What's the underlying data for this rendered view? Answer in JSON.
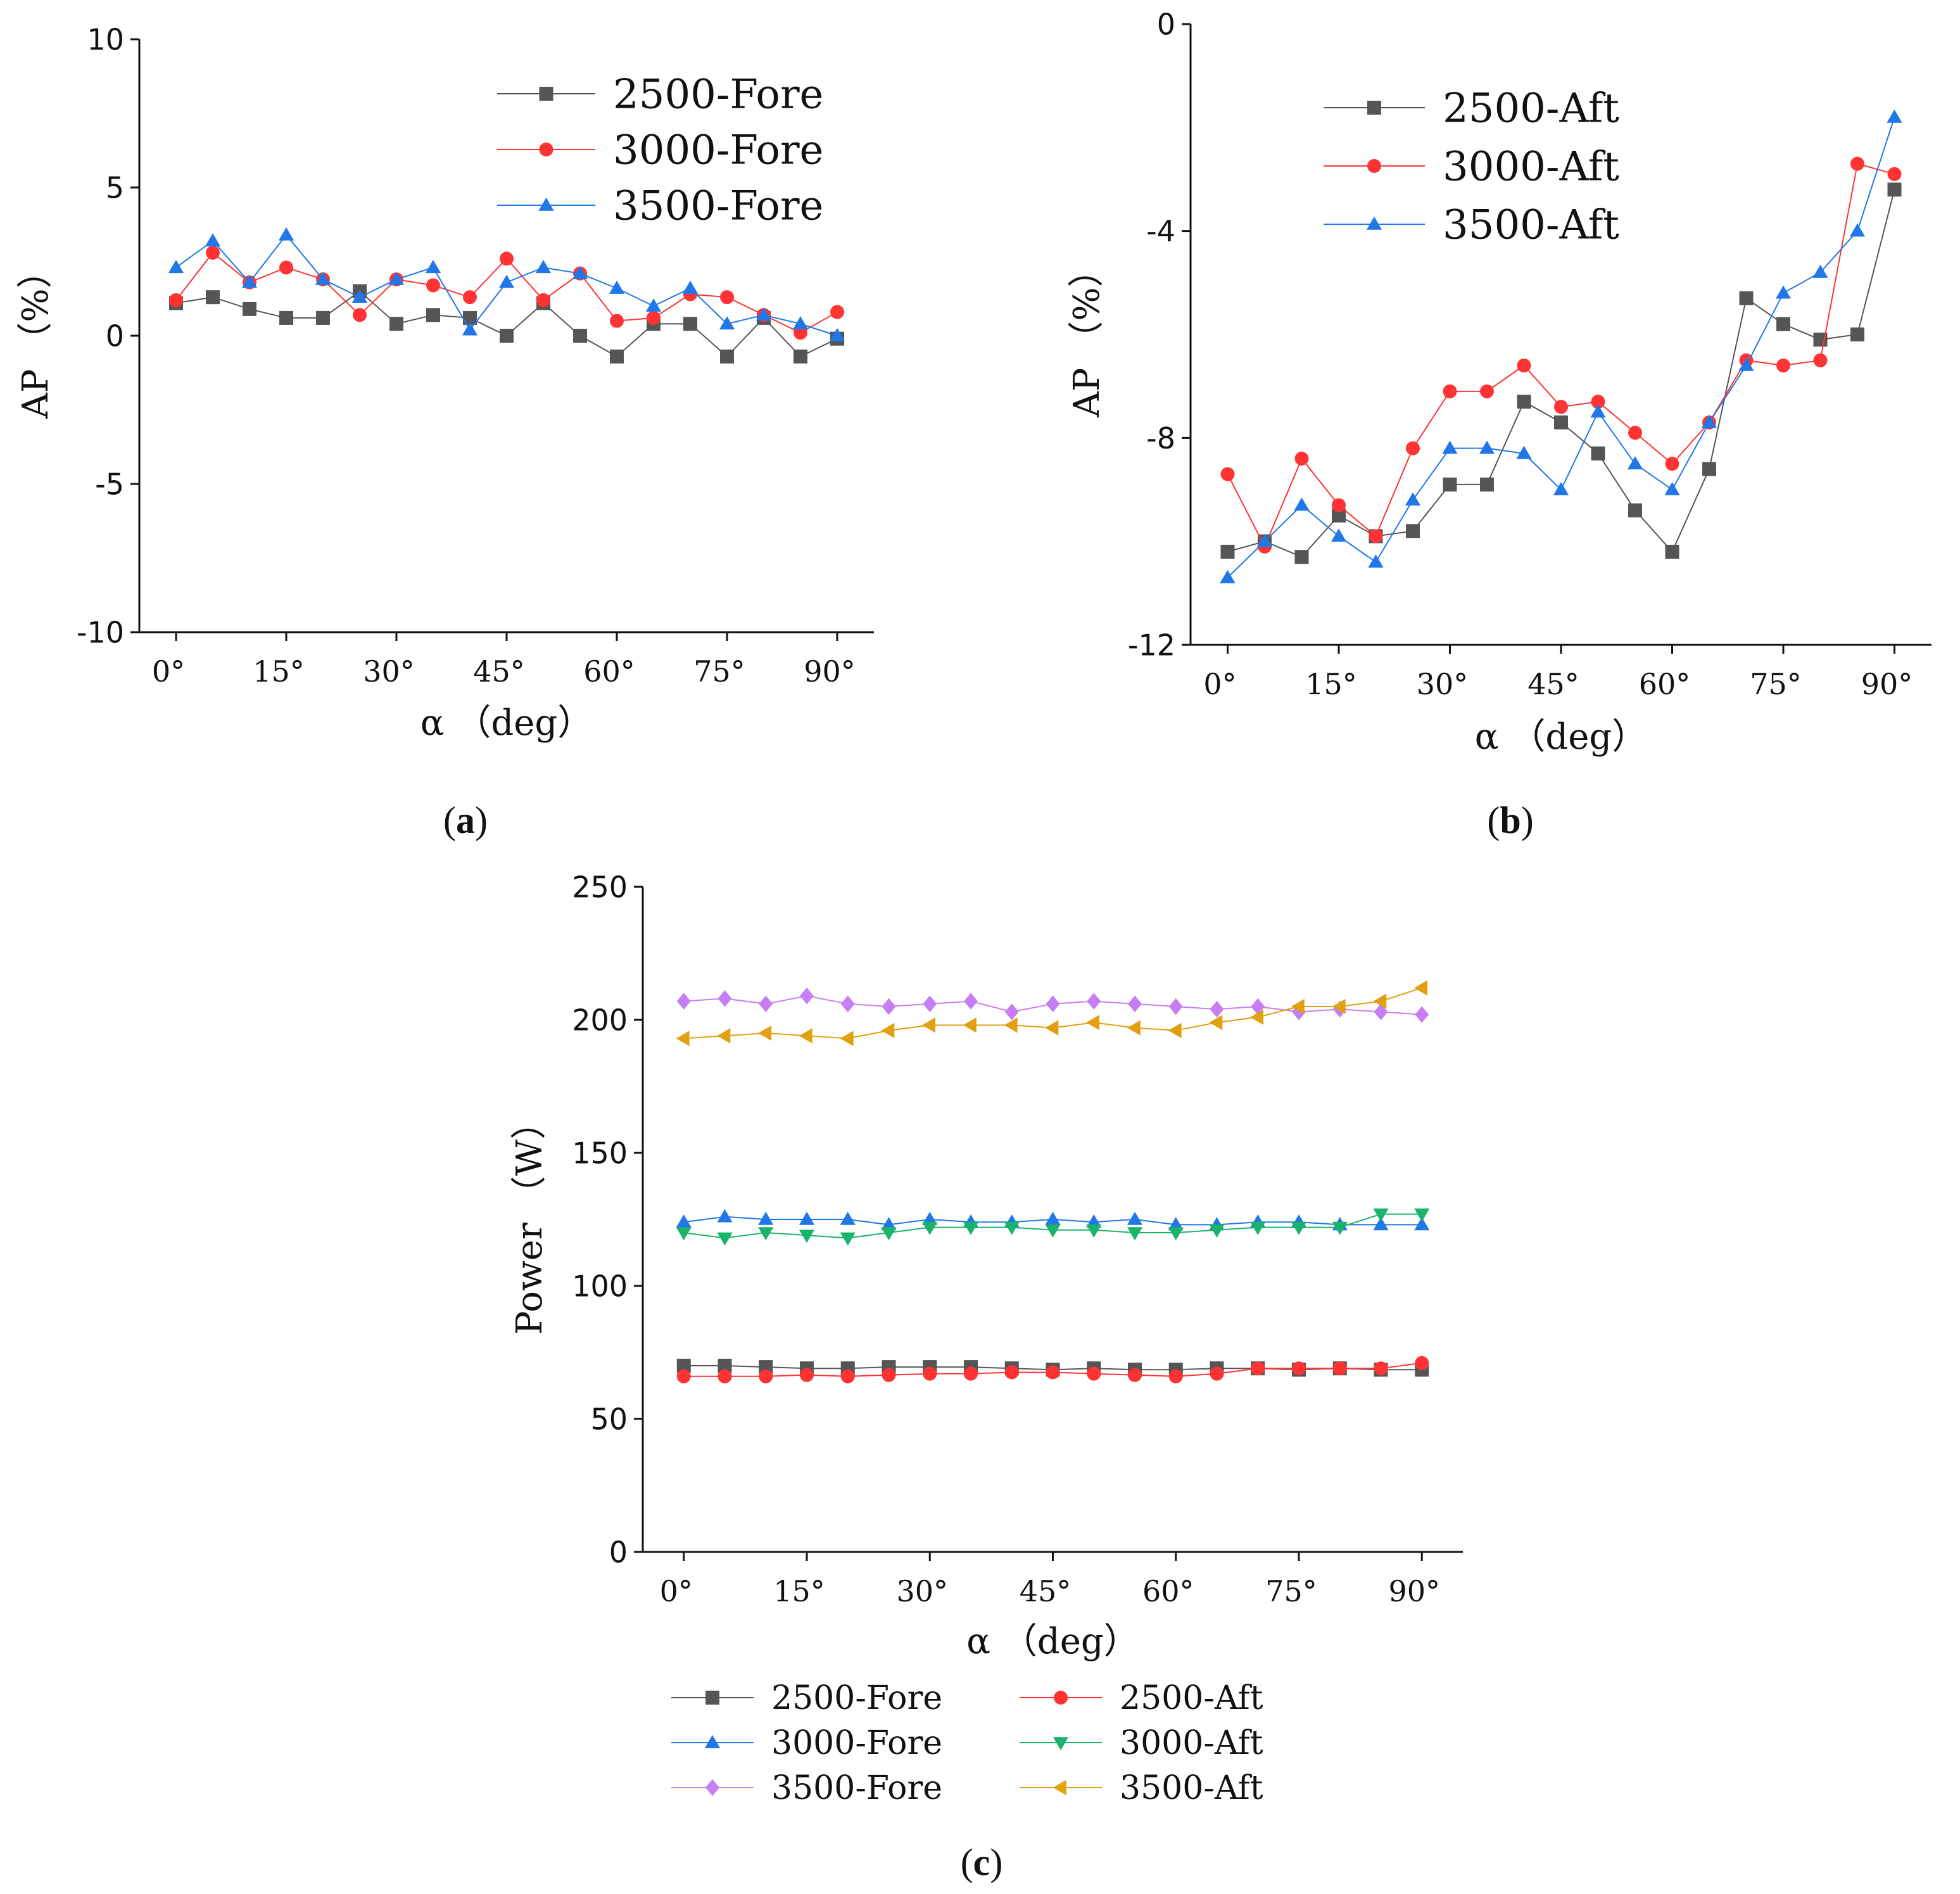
{
  "chart_data": [
    {
      "id": "a",
      "type": "line",
      "caption": "a",
      "xlabel": "α （deg）",
      "ylabel": "AP （%）",
      "xlim": [
        -5,
        95
      ],
      "ylim": [
        -10,
        10
      ],
      "xticks": [
        0,
        15,
        30,
        45,
        60,
        75,
        90
      ],
      "xtick_labels": [
        "0°",
        "15°",
        "30°",
        "45°",
        "60°",
        "75°",
        "90°"
      ],
      "yticks": [
        -10,
        -5,
        0,
        5,
        10
      ],
      "ytick_labels": [
        "-10",
        "-5",
        "0",
        "5",
        "10"
      ],
      "x": [
        0,
        5,
        10,
        15,
        20,
        25,
        30,
        35,
        40,
        45,
        50,
        55,
        60,
        65,
        70,
        75,
        80,
        85,
        90
      ],
      "legend_position": "top-right",
      "series": [
        {
          "name": "2500-Fore",
          "color": "#555555",
          "marker": "square",
          "values": [
            1.1,
            1.3,
            0.9,
            0.6,
            0.6,
            1.5,
            0.4,
            0.7,
            0.6,
            0.0,
            1.1,
            0.0,
            -0.7,
            0.4,
            0.4,
            -0.7,
            0.6,
            -0.7,
            -0.1
          ]
        },
        {
          "name": "3000-Fore",
          "color": "#ff3333",
          "marker": "circle",
          "values": [
            1.2,
            2.8,
            1.8,
            2.3,
            1.9,
            0.7,
            1.9,
            1.7,
            1.3,
            2.6,
            1.2,
            2.1,
            0.5,
            0.6,
            1.4,
            1.3,
            0.7,
            0.1,
            0.8
          ]
        },
        {
          "name": "3500-Fore",
          "color": "#1f77e8",
          "marker": "triangle-up",
          "values": [
            2.3,
            3.2,
            1.8,
            3.4,
            1.9,
            1.3,
            1.9,
            2.3,
            0.2,
            1.8,
            2.3,
            2.1,
            1.6,
            1.0,
            1.6,
            0.4,
            0.7,
            0.4,
            0.0
          ]
        }
      ]
    },
    {
      "id": "b",
      "type": "line",
      "caption": "b",
      "xlabel": "α （deg）",
      "ylabel": "AP （%）",
      "xlim": [
        -5,
        95
      ],
      "ylim": [
        -12,
        0
      ],
      "xticks": [
        0,
        15,
        30,
        45,
        60,
        75,
        90
      ],
      "xtick_labels": [
        "0°",
        "15°",
        "30°",
        "45°",
        "60°",
        "75°",
        "90°"
      ],
      "yticks": [
        -12,
        -8,
        -4,
        0
      ],
      "ytick_labels": [
        "-12",
        "-8",
        "-4",
        "0"
      ],
      "x": [
        0,
        5,
        10,
        15,
        20,
        25,
        30,
        35,
        40,
        45,
        50,
        55,
        60,
        65,
        70,
        75,
        80,
        85,
        90
      ],
      "legend_position": "top-left",
      "series": [
        {
          "name": "2500-Aft",
          "color": "#555555",
          "marker": "square",
          "values": [
            -10.2,
            -10.0,
            -10.3,
            -9.5,
            -9.9,
            -9.8,
            -8.9,
            -8.9,
            -7.3,
            -7.7,
            -8.3,
            -9.4,
            -10.2,
            -8.6,
            -5.3,
            -5.8,
            -6.1,
            -6.0,
            -3.2
          ]
        },
        {
          "name": "3000-Aft",
          "color": "#ff3333",
          "marker": "circle",
          "values": [
            -8.7,
            -10.1,
            -8.4,
            -9.3,
            -9.9,
            -8.2,
            -7.1,
            -7.1,
            -6.6,
            -7.4,
            -7.3,
            -7.9,
            -8.5,
            -7.7,
            -6.5,
            -6.6,
            -6.5,
            -2.7,
            -2.9
          ]
        },
        {
          "name": "3500-Aft",
          "color": "#1f77e8",
          "marker": "triangle-up",
          "values": [
            -10.7,
            -10.0,
            -9.3,
            -9.9,
            -10.4,
            -9.2,
            -8.2,
            -8.2,
            -8.3,
            -9.0,
            -7.5,
            -8.5,
            -9.0,
            -7.7,
            -6.6,
            -5.2,
            -4.8,
            -4.0,
            -1.8
          ]
        }
      ]
    },
    {
      "id": "c",
      "type": "line",
      "caption": "c",
      "xlabel": "α （deg）",
      "ylabel": "Power （W）",
      "xlim": [
        -5,
        95
      ],
      "ylim": [
        0,
        250
      ],
      "xticks": [
        0,
        15,
        30,
        45,
        60,
        75,
        90
      ],
      "xtick_labels": [
        "0°",
        "15°",
        "30°",
        "45°",
        "60°",
        "75°",
        "90°"
      ],
      "yticks": [
        0,
        50,
        100,
        150,
        200,
        250
      ],
      "ytick_labels": [
        "0",
        "50",
        "100",
        "150",
        "200",
        "250"
      ],
      "x": [
        0,
        5,
        10,
        15,
        20,
        25,
        30,
        35,
        40,
        45,
        50,
        55,
        60,
        65,
        70,
        75,
        80,
        85,
        90
      ],
      "legend_position": "bottom",
      "series": [
        {
          "name": "2500-Fore",
          "color": "#555555",
          "marker": "square",
          "values": [
            70,
            70,
            69.5,
            69,
            69,
            69.5,
            69.5,
            69.5,
            69,
            68.5,
            69,
            68.5,
            68.5,
            69,
            69,
            68.5,
            69,
            68.5,
            68.5
          ]
        },
        {
          "name": "2500-Aft",
          "color": "#ff3333",
          "marker": "circle",
          "values": [
            66,
            66,
            66,
            66.5,
            66,
            66.5,
            67,
            67,
            67.5,
            67.5,
            67,
            66.5,
            66,
            67,
            69,
            69,
            69,
            69,
            71
          ]
        },
        {
          "name": "3000-Fore",
          "color": "#1f77e8",
          "marker": "triangle-up",
          "values": [
            124,
            126,
            125,
            125,
            125,
            123,
            125,
            124,
            124,
            125,
            124,
            125,
            123,
            123,
            124,
            124,
            123,
            123,
            123
          ]
        },
        {
          "name": "3000-Aft",
          "color": "#19b36b",
          "marker": "triangle-down",
          "values": [
            120,
            118,
            120,
            119,
            118,
            120,
            122,
            122,
            122,
            121,
            121,
            120,
            120,
            121,
            122,
            122,
            122,
            127,
            127
          ]
        },
        {
          "name": "3500-Fore",
          "color": "#c77ef5",
          "marker": "diamond",
          "values": [
            207,
            208,
            206,
            209,
            206,
            205,
            206,
            207,
            203,
            206,
            207,
            206,
            205,
            204,
            205,
            203,
            204,
            203,
            202
          ]
        },
        {
          "name": "3500-Aft",
          "color": "#e0a010",
          "marker": "triangle-left",
          "values": [
            193,
            194,
            195,
            194,
            193,
            196,
            198,
            198,
            198,
            197,
            199,
            197,
            196,
            199,
            201,
            205,
            205,
            207,
            212
          ]
        }
      ]
    }
  ]
}
